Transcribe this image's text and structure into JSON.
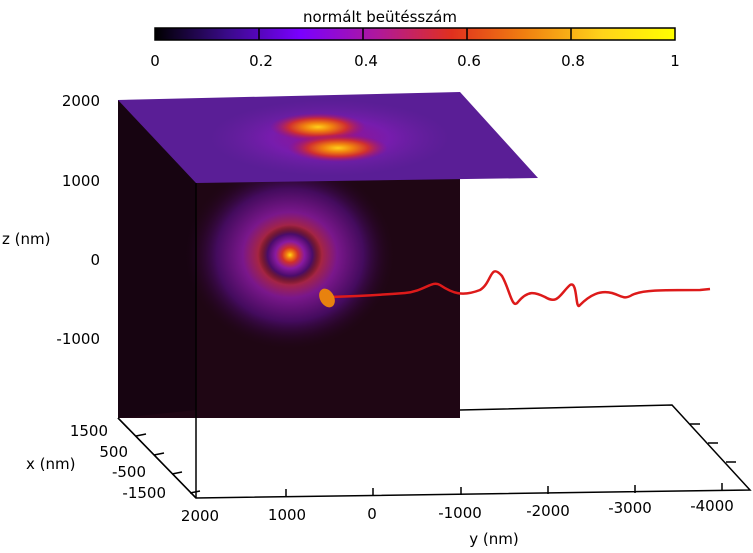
{
  "colorbar": {
    "title": "normált beütésszám",
    "ticks": [
      "0",
      "0.2",
      "0.4",
      "0.6",
      "0.8",
      "1"
    ],
    "colors": [
      "#000000",
      "#3a0a8a",
      "#7a00ff",
      "#b0189a",
      "#e0301e",
      "#f07f10",
      "#ffd31a",
      "#ffff00"
    ]
  },
  "axes": {
    "z_label": "z (nm)",
    "z_ticks": [
      "2000",
      "1000",
      "0",
      "-1000"
    ],
    "x_label": "x (nm)",
    "x_ticks": [
      "1500",
      "500",
      "-500",
      "-1500"
    ],
    "y_label": "y (nm)",
    "y_ticks": [
      "2000",
      "1000",
      "0",
      "-1000",
      "-2000",
      "-3000",
      "-4000"
    ]
  },
  "trajectory": {
    "color": "#dd1a1a",
    "marker_color": "#e8820e"
  }
}
